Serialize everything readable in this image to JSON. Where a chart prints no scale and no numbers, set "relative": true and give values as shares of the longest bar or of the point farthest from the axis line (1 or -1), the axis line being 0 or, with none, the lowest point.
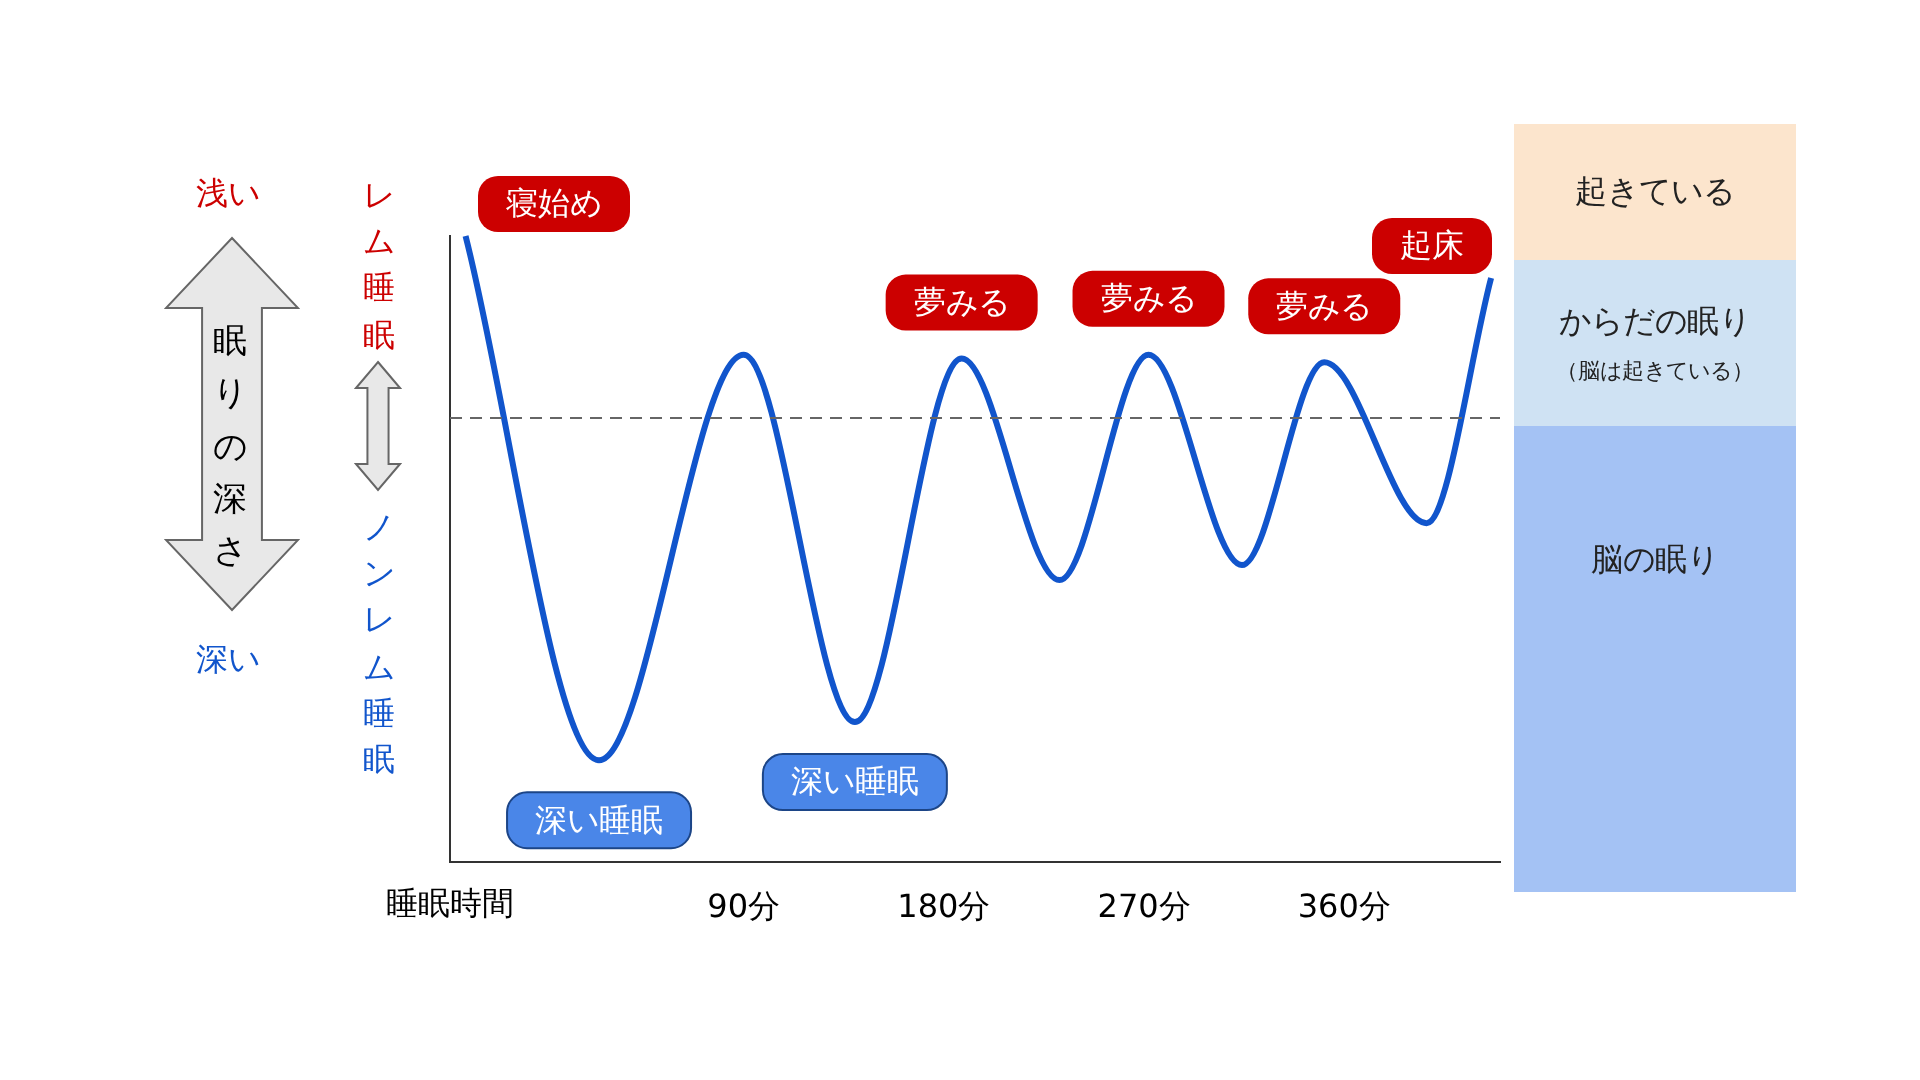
{
  "chart_data": {
    "type": "line",
    "relative": true,
    "xlabel": "睡眠時間",
    "x": [
      -35,
      25,
      90,
      140,
      188,
      232,
      272,
      314,
      351,
      397,
      426
    ],
    "series": [
      {
        "color": "#1155cc",
        "values": [
          1,
          0.162,
          0.81,
          0.223,
          0.804,
          0.45,
          0.81,
          0.474,
          0.798,
          0.541,
          0.933
        ]
      }
    ],
    "xlim": [
      -42,
      430
    ],
    "xticks": [
      {
        "value": 90,
        "label": "90分"
      },
      {
        "value": 180,
        "label": "180分"
      },
      {
        "value": 270,
        "label": "270分"
      },
      {
        "value": 360,
        "label": "360分"
      }
    ],
    "grid": false,
    "legend": false,
    "marker": "none",
    "line_style": "solid",
    "tick_labels": "x",
    "ref_lines": [
      {
        "axis": "y",
        "value": 0.709,
        "color": "#666666",
        "line_style": "dashed"
      }
    ],
    "annotations": [
      {
        "text": "寝始め",
        "x": -35,
        "y": 1
      },
      {
        "text": "夢みる",
        "x": 188,
        "y": 0.804
      },
      {
        "text": "夢みる",
        "x": 272,
        "y": 0.81
      },
      {
        "text": "夢みる",
        "x": 351,
        "y": 0.798
      },
      {
        "text": "起床",
        "x": 426,
        "y": 0.933
      },
      {
        "text": "深い睡眠",
        "x": 25,
        "y": 0.162
      },
      {
        "text": "深い睡眠",
        "x": 140,
        "y": 0.223
      },
      "浅い",
      "深い",
      "レム睡眠",
      "ノンレム睡眠",
      "起きている",
      "からだの眠り",
      "（脳は起きている）",
      "脳の眠り",
      "眠りの深さ"
    ]
  }
}
